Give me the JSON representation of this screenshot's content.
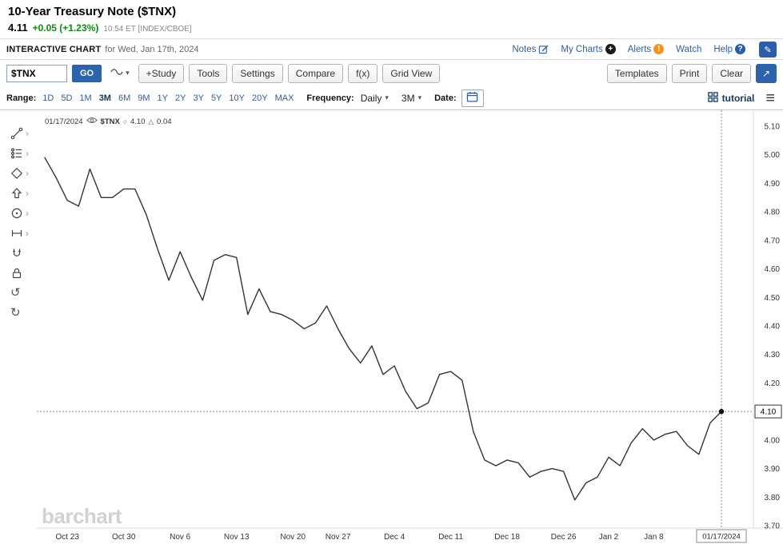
{
  "header": {
    "title": "10-Year Treasury Note ($TNX)",
    "price": "4.11",
    "change": "+0.05 (+1.23%)",
    "timestamp": "10:54 ET [INDEX/CBOE]",
    "subheader_label": "INTERACTIVE CHART",
    "subheader_date": "for Wed, Jan 17th, 2024",
    "links": [
      {
        "label": "Notes",
        "icon": "notes-icon"
      },
      {
        "label": "My Charts",
        "icon": "mycharts-icon"
      },
      {
        "label": "Alerts",
        "icon": "alerts-icon"
      },
      {
        "label": "Watch"
      },
      {
        "label": "Help",
        "icon": "help-icon"
      }
    ]
  },
  "toolbar": {
    "symbol_value": "$TNX",
    "go_label": "GO",
    "buttons_left": [
      "+Study",
      "Tools",
      "Settings",
      "Compare",
      "f(x)",
      "Grid View"
    ],
    "buttons_right": [
      "Templates",
      "Print",
      "Clear"
    ]
  },
  "range_bar": {
    "range_label": "Range:",
    "ranges": [
      "1D",
      "5D",
      "1M",
      "3M",
      "6M",
      "9M",
      "1Y",
      "2Y",
      "3Y",
      "5Y",
      "10Y",
      "20Y",
      "MAX"
    ],
    "selected_range": "3M",
    "frequency_label": "Frequency:",
    "frequency_value": "Daily",
    "period_value": "3M",
    "date_label": "Date:",
    "tutorial_label": "tutorial"
  },
  "left_toolbar": {
    "tools": [
      {
        "name": "trendline-tool",
        "icon": "trendline-icon",
        "expandable": true
      },
      {
        "name": "studies-tool",
        "icon": "studies-icon",
        "expandable": true
      },
      {
        "name": "shapes-tool",
        "icon": "shapes-icon",
        "expandable": true
      },
      {
        "name": "arrow-tool",
        "icon": "arrow-icon",
        "expandable": true
      },
      {
        "name": "circle-tool",
        "icon": "circle-icon",
        "expandable": true
      },
      {
        "name": "measure-tool",
        "icon": "measure-icon",
        "expandable": true
      },
      {
        "name": "magnet-tool",
        "icon": "magnet-icon",
        "expandable": false
      },
      {
        "name": "lock-tool",
        "icon": "lock-icon",
        "expandable": false
      },
      {
        "name": "undo-tool",
        "icon": "undo-icon",
        "expandable": false
      },
      {
        "name": "redo-tool",
        "icon": "redo-icon",
        "expandable": false
      }
    ]
  },
  "chart_overlay": {
    "date": "01/17/2024",
    "symbol": "$TNX",
    "last": "4.10",
    "change": "0.04"
  },
  "watermark": "barchart",
  "colors": {
    "accent_blue": "#2b5dad",
    "positive_green": "#0c8e0c",
    "selected_navy": "#14375f",
    "chart_line": "#333333"
  },
  "chart_data": {
    "type": "line",
    "title": "10-Year Treasury Note ($TNX) - 3M Daily",
    "xlabel": "",
    "ylabel": "",
    "x": [
      "10/19",
      "10/20",
      "10/23",
      "10/24",
      "10/25",
      "10/26",
      "10/27",
      "10/30",
      "10/31",
      "11/01",
      "11/02",
      "11/03",
      "11/06",
      "11/07",
      "11/08",
      "11/09",
      "11/10",
      "11/13",
      "11/14",
      "11/15",
      "11/16",
      "11/17",
      "11/20",
      "11/21",
      "11/22",
      "11/24",
      "11/27",
      "11/28",
      "11/29",
      "11/30",
      "12/01",
      "12/04",
      "12/05",
      "12/06",
      "12/07",
      "12/08",
      "12/11",
      "12/12",
      "12/13",
      "12/14",
      "12/15",
      "12/18",
      "12/19",
      "12/20",
      "12/21",
      "12/22",
      "12/26",
      "12/27",
      "12/28",
      "12/29",
      "01/02",
      "01/03",
      "01/04",
      "01/05",
      "01/08",
      "01/09",
      "01/10",
      "01/11",
      "01/12",
      "01/16",
      "01/17"
    ],
    "values": [
      4.99,
      4.92,
      4.84,
      4.82,
      4.95,
      4.85,
      4.85,
      4.88,
      4.88,
      4.79,
      4.67,
      4.56,
      4.66,
      4.57,
      4.49,
      4.63,
      4.65,
      4.64,
      4.44,
      4.53,
      4.45,
      4.44,
      4.42,
      4.39,
      4.41,
      4.47,
      4.39,
      4.32,
      4.27,
      4.33,
      4.23,
      4.26,
      4.17,
      4.11,
      4.13,
      4.23,
      4.24,
      4.21,
      4.03,
      3.93,
      3.91,
      3.93,
      3.92,
      3.87,
      3.89,
      3.9,
      3.89,
      3.79,
      3.85,
      3.87,
      3.94,
      3.91,
      3.99,
      4.04,
      4.0,
      4.02,
      4.03,
      3.98,
      3.95,
      4.06,
      4.1
    ],
    "ylim": [
      3.7,
      5.1
    ],
    "y_ticks": [
      "5.10",
      "5.00",
      "4.90",
      "4.80",
      "4.70",
      "4.60",
      "4.50",
      "4.40",
      "4.30",
      "4.20",
      "4.10",
      "4.00",
      "3.90",
      "3.80",
      "3.70"
    ],
    "x_tick_labels": [
      {
        "label": "Oct 23",
        "i": 2
      },
      {
        "label": "Oct 30",
        "i": 7
      },
      {
        "label": "Nov 6",
        "i": 12
      },
      {
        "label": "Nov 13",
        "i": 17
      },
      {
        "label": "Nov 20",
        "i": 22
      },
      {
        "label": "Nov 27",
        "i": 26
      },
      {
        "label": "Dec 4",
        "i": 31
      },
      {
        "label": "Dec 11",
        "i": 36
      },
      {
        "label": "Dec 18",
        "i": 41
      },
      {
        "label": "Dec 26",
        "i": 46
      },
      {
        "label": "Jan 2",
        "i": 50
      },
      {
        "label": "Jan 8",
        "i": 54
      }
    ],
    "last_label": "4.10",
    "last_date_label": "01/17/2024",
    "line_color": "#333333",
    "grid": false,
    "legend_position": "none"
  }
}
